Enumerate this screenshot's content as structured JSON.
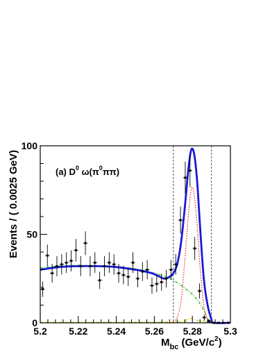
{
  "chart_data": {
    "type": "scatter",
    "xlabel_main": "M",
    "xlabel_sub": "bc",
    "xlabel_unit_pre": " (GeV/c",
    "xlabel_unit_sup": "2",
    "xlabel_unit_post": ")",
    "ylabel": "Events / ( 0.0025  GeV)",
    "annotation": {
      "prefix": "(a) D",
      "sup1": "0",
      "mid": " ω(π",
      "sup2": "0",
      "suffix": "ππ)"
    },
    "xlim": [
      5.2,
      5.3
    ],
    "ylim": [
      0,
      100
    ],
    "x_ticks": [
      "5.2",
      "5.22",
      "5.24",
      "5.26",
      "5.28",
      "5.3"
    ],
    "y_ticks": [
      "0",
      "50",
      "100"
    ],
    "signal_window": [
      5.27,
      5.29
    ],
    "colors": {
      "total_fit": "#1a1adb",
      "signal": "#ff3030",
      "background": "#22bb22",
      "peaking_bkg": "#cccc00",
      "window_lines": "#555555",
      "data": "#000000"
    },
    "series": [
      {
        "kind": "data_points",
        "x": [
          5.20125,
          5.20375,
          5.20625,
          5.20875,
          5.21125,
          5.21375,
          5.21625,
          5.21875,
          5.22125,
          5.22375,
          5.22625,
          5.22875,
          5.23125,
          5.23375,
          5.23625,
          5.23875,
          5.24125,
          5.24375,
          5.24625,
          5.24875,
          5.25125,
          5.25375,
          5.25625,
          5.25875,
          5.26125,
          5.26375,
          5.26625,
          5.26875,
          5.27125,
          5.27375,
          5.27625,
          5.27875,
          5.28125,
          5.28375,
          5.28625,
          5.28875,
          5.29125,
          5.29375,
          5.29625,
          5.29875
        ],
        "y": [
          19,
          38,
          28,
          32,
          33,
          34,
          35,
          41,
          32,
          45,
          32,
          34,
          24,
          32,
          34,
          33,
          28,
          27,
          26,
          34,
          25,
          29,
          30,
          21,
          22,
          23,
          25,
          30,
          33,
          58,
          82,
          86,
          42,
          18,
          3,
          1,
          0,
          0,
          0,
          0
        ]
      },
      {
        "kind": "total_fit",
        "x": [
          5.2,
          5.21,
          5.22,
          5.23,
          5.24,
          5.25,
          5.255,
          5.26,
          5.265,
          5.268,
          5.27,
          5.272,
          5.274,
          5.276,
          5.278,
          5.2795,
          5.281,
          5.2825,
          5.284,
          5.286,
          5.288,
          5.29,
          5.291,
          5.3
        ],
        "y": [
          30,
          31.5,
          32,
          32,
          31.5,
          30,
          29,
          27.5,
          25,
          26,
          28,
          33,
          45,
          65,
          88,
          98,
          95,
          80,
          55,
          25,
          10,
          2,
          0,
          0
        ]
      },
      {
        "kind": "signal",
        "x": [
          5.27,
          5.272,
          5.274,
          5.276,
          5.278,
          5.2795,
          5.281,
          5.2825,
          5.284,
          5.286,
          5.288,
          5.29
        ],
        "y": [
          0.5,
          3,
          12,
          35,
          62,
          76,
          72,
          55,
          32,
          10,
          2,
          0
        ]
      },
      {
        "kind": "background",
        "x": [
          5.2,
          5.21,
          5.22,
          5.23,
          5.24,
          5.25,
          5.26,
          5.27,
          5.28,
          5.285,
          5.289
        ],
        "y": [
          31,
          32,
          32.5,
          32,
          31.5,
          30.5,
          28,
          24,
          16,
          9,
          0
        ]
      },
      {
        "kind": "peaking_background",
        "x": [
          5.2,
          5.27,
          5.276,
          5.279,
          5.282,
          5.288,
          5.29
        ],
        "y": [
          0.3,
          0.5,
          1.5,
          2.5,
          1.5,
          0.5,
          0
        ]
      }
    ]
  }
}
